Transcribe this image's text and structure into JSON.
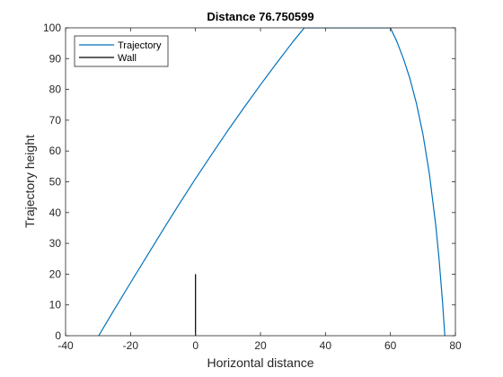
{
  "colors": {
    "trajectory": "#0072BD",
    "wall": "#000000",
    "axis": "#262626",
    "background": "#ffffff"
  },
  "chart_data": {
    "type": "line",
    "title": "Distance 76.750599",
    "xlabel": "Horizontal distance",
    "ylabel": "Trajectory height",
    "xlim": [
      -40,
      80
    ],
    "ylim": [
      0,
      100
    ],
    "xticks": [
      "-40",
      "-20",
      "0",
      "20",
      "40",
      "60",
      "80"
    ],
    "yticks": [
      "0",
      "10",
      "20",
      "30",
      "40",
      "50",
      "60",
      "70",
      "80",
      "90",
      "100"
    ],
    "grid": false,
    "legend_position": "top-left",
    "series": [
      {
        "name": "Trajectory",
        "color": "#0072BD",
        "x": [
          -29.8,
          -25,
          -20,
          -15,
          -10,
          -5,
          0,
          5,
          10,
          15,
          20,
          25,
          30,
          33.5,
          60,
          62,
          64,
          66,
          68,
          70,
          72,
          74,
          75,
          76,
          76.75
        ],
        "y": [
          0,
          8.5,
          17.2,
          25.8,
          34.4,
          42.8,
          51,
          58.9,
          66.7,
          74.2,
          81.5,
          88.6,
          95.5,
          100,
          100,
          95.5,
          90,
          83.5,
          75.5,
          65.5,
          52.5,
          35.5,
          24.5,
          11.5,
          0
        ]
      },
      {
        "name": "Wall",
        "color": "#000000",
        "x": [
          0,
          0
        ],
        "y": [
          0,
          20
        ]
      }
    ]
  }
}
